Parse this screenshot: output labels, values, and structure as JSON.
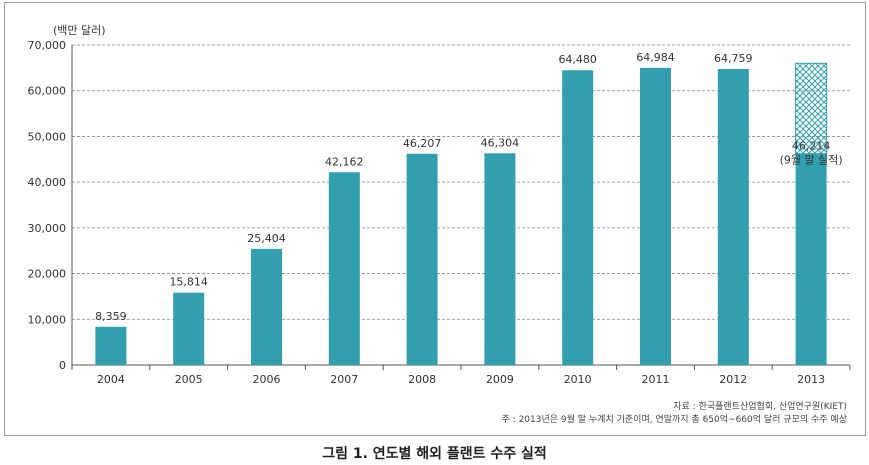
{
  "chart_data": {
    "type": "bar",
    "title": "",
    "ylabel": "(백만 달러)",
    "xlabel": "",
    "ylim": [
      0,
      70000
    ],
    "yticks": [
      0,
      10000,
      20000,
      30000,
      40000,
      50000,
      60000,
      70000
    ],
    "ytick_labels": [
      "0",
      "10,000",
      "20,000",
      "30,000",
      "40,000",
      "50,000",
      "60,000",
      "70,000"
    ],
    "grid": "horizontal dashed",
    "categories": [
      "2004",
      "2005",
      "2006",
      "2007",
      "2008",
      "2009",
      "2010",
      "2011",
      "2012",
      "2013"
    ],
    "values": [
      8359,
      15814,
      25404,
      42162,
      46207,
      46304,
      64480,
      64984,
      64759,
      46214
    ],
    "value_labels": [
      "8,359",
      "15,814",
      "25,404",
      "42,162",
      "46,207",
      "46,304",
      "64,480",
      "64,984",
      "64,759",
      "46,214"
    ],
    "projected_2013_total": 66000,
    "annotation_2013": "(9월 말 실적)",
    "colors": {
      "bar": "#339fae",
      "projection": "#339fae",
      "grid": "#888888",
      "axis": "#555555"
    }
  },
  "source_note": "자료 : 한국플랜트산업협회, 산업연구원(KIET)",
  "footnote": "주 : 2013년은 9월 말 누계치 기준이며, 연말까지 총 650억~660억 달러 규모의 수주 예상",
  "figure_caption": "그림 1. 연도별 해외 플랜트 수주 실적"
}
